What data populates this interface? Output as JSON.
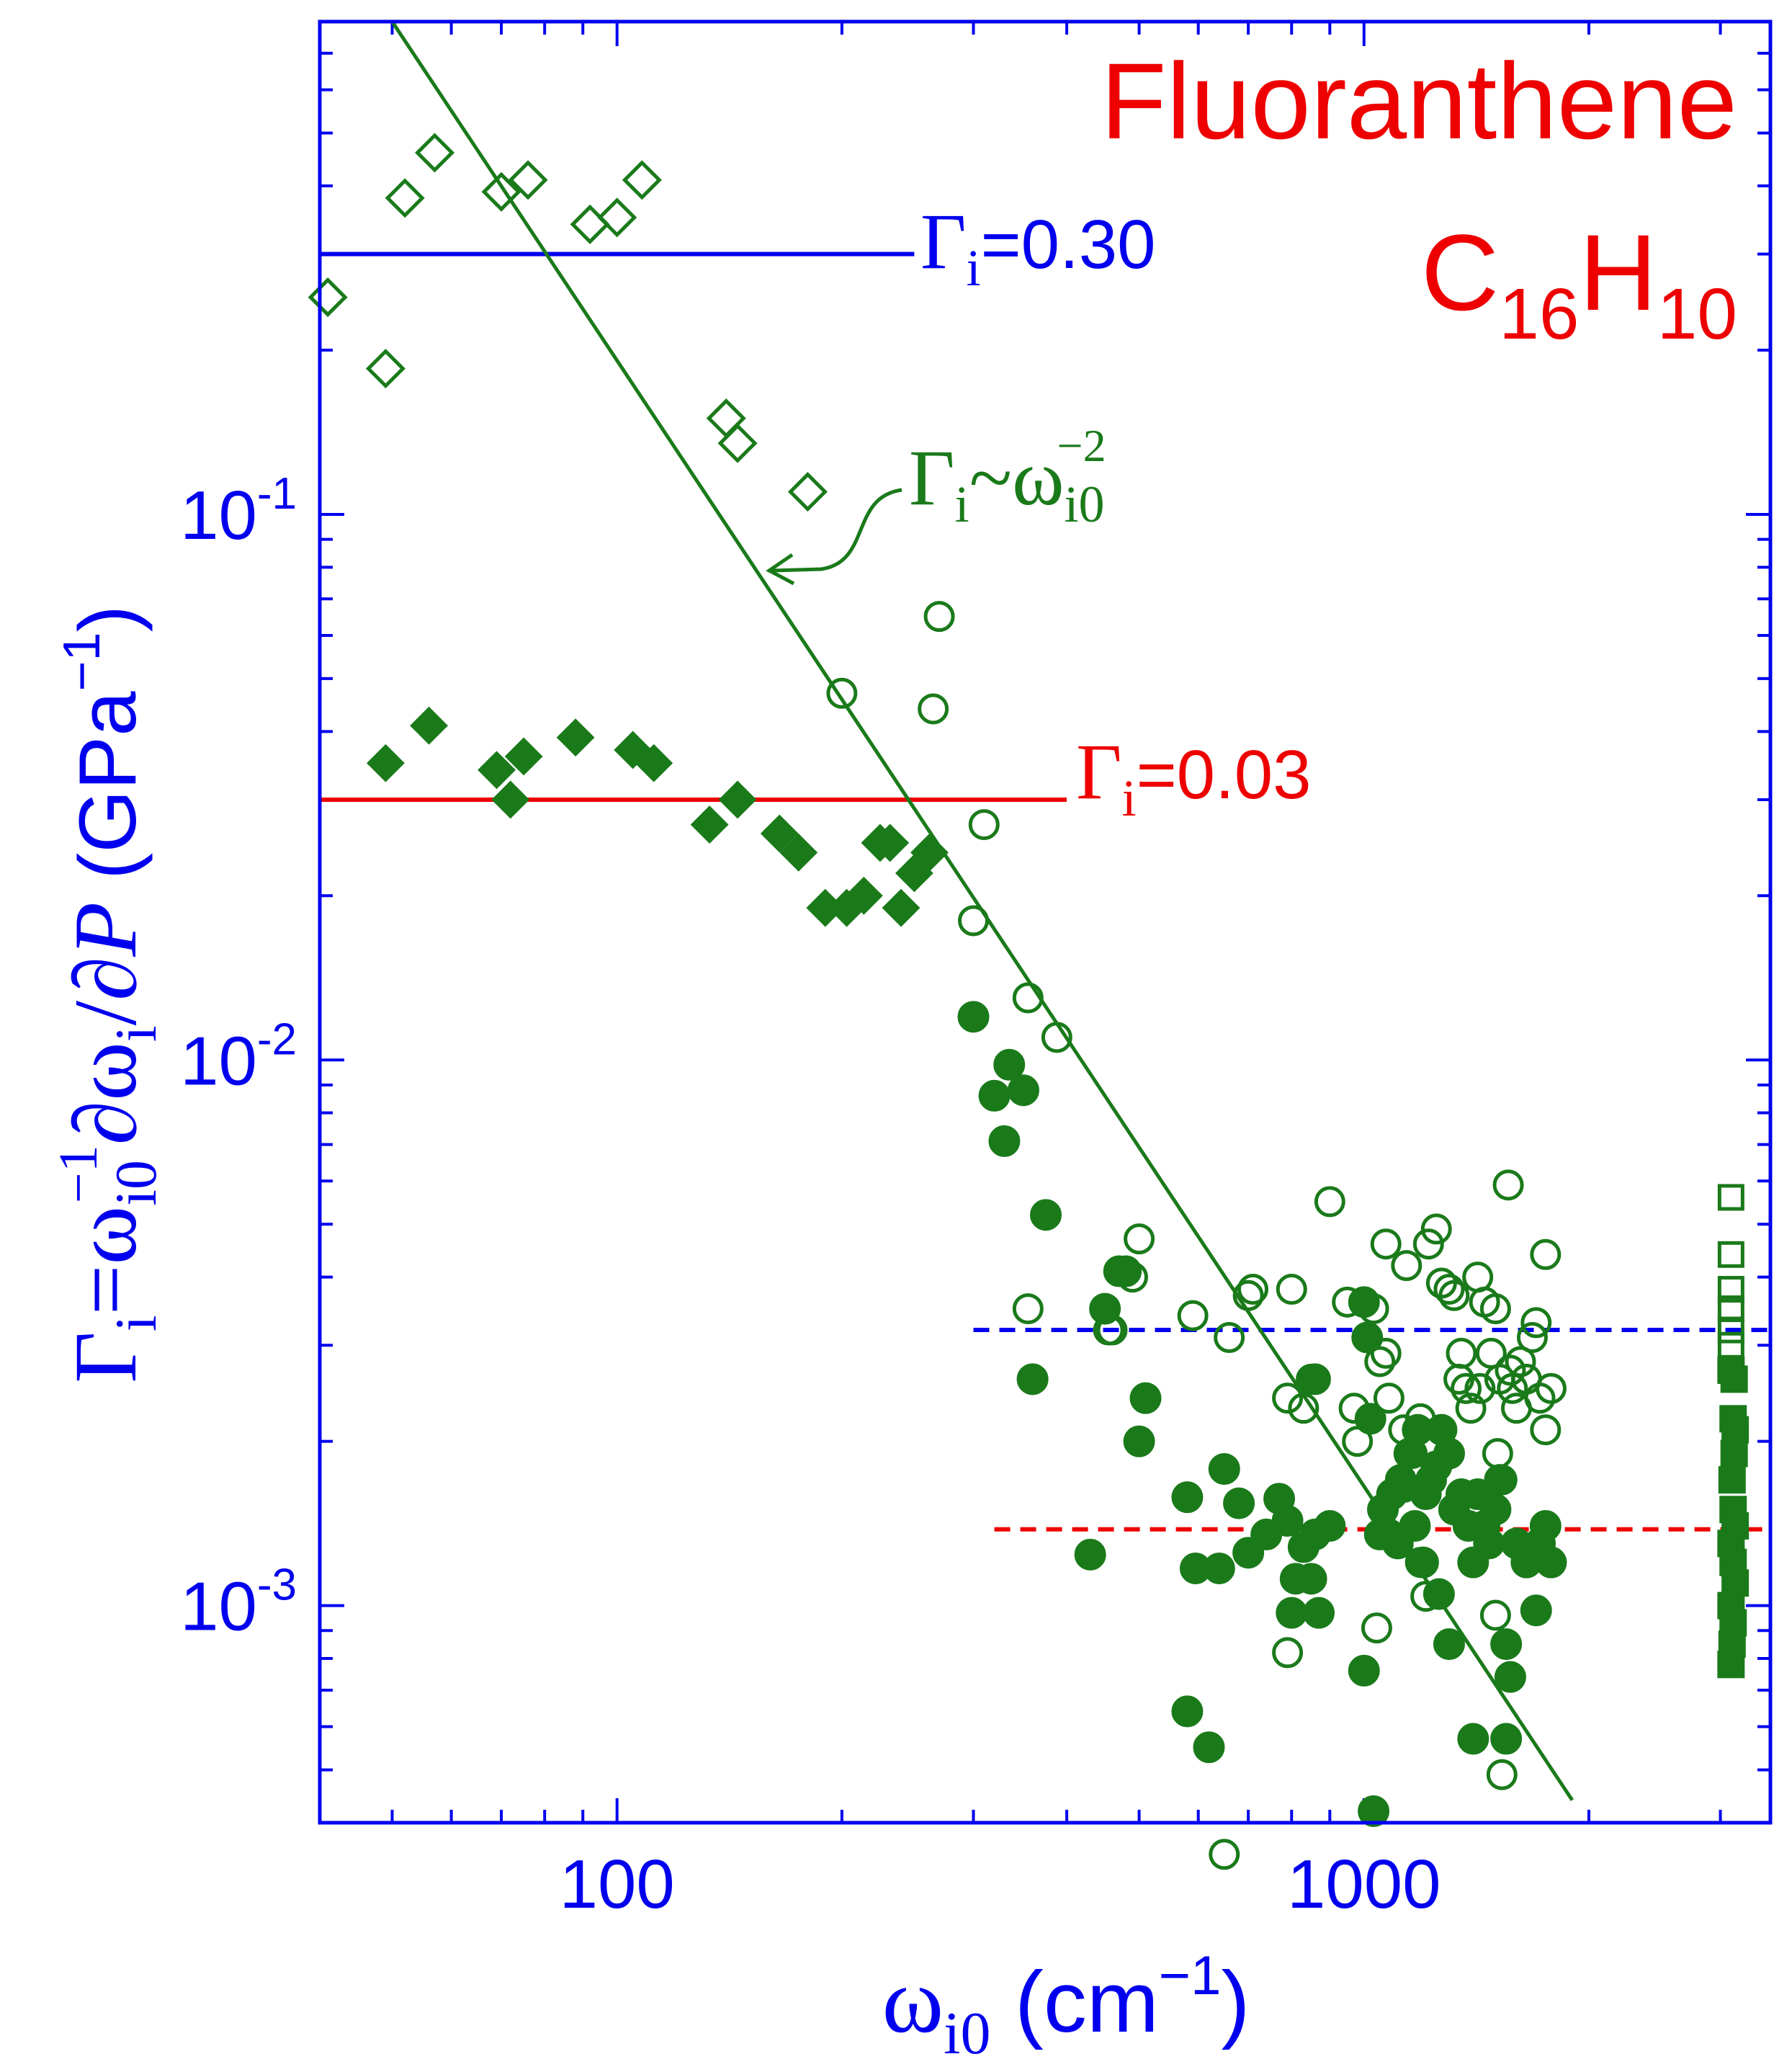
{
  "chart_data": {
    "type": "scatter",
    "title": "Fluoranthene",
    "formula": {
      "c": "C",
      "c_sub": "16",
      "h": "H",
      "h_sub": "10"
    },
    "xscale": "log",
    "yscale": "log",
    "xlim": [
      40,
      3500
    ],
    "ylim": [
      0.0004,
      0.8
    ],
    "xticks": [
      {
        "value": 100,
        "label": "100"
      },
      {
        "value": 1000,
        "label": "1000"
      }
    ],
    "yticks": [
      {
        "value": 0.1,
        "base": "10",
        "exp": "-1"
      },
      {
        "value": 0.01,
        "base": "10",
        "exp": "-2"
      },
      {
        "value": 0.001,
        "base": "10",
        "exp": "-3"
      }
    ],
    "xlabel": {
      "main": "ω",
      "sub": "i0",
      "rest": " (cm",
      "sup": "−1",
      "end": ")"
    },
    "ylabel": {
      "p1": "Γ",
      "s1": "i",
      "p2": "=ω",
      "s2": "i0",
      "sup2": "−1",
      "p3": "∂ω",
      "s3": "i",
      "p4": "/∂",
      "p5": "P",
      "p6": " (GPa",
      "sup6": "−1",
      "p7": ")"
    },
    "reference_lines": [
      {
        "label_main": "Γ",
        "label_sub": "i",
        "label_value": "=0.30",
        "y": 0.3,
        "x_range": [
          40,
          250
        ],
        "style": "solid",
        "color": "#0000ee"
      },
      {
        "label_main": "Γ",
        "label_sub": "i",
        "label_value": "=0.03",
        "y": 0.03,
        "x_range": [
          40,
          400
        ],
        "style": "solid",
        "color": "#ee0000"
      },
      {
        "y": 0.0032,
        "x_range": [
          300,
          3500
        ],
        "style": "dashed",
        "color": "#0000ee"
      },
      {
        "y": 0.00138,
        "x_range": [
          320,
          3500
        ],
        "style": "dashed",
        "color": "#ee0000"
      }
    ],
    "fit_line": {
      "label": {
        "main": "Γ",
        "sub1": "i",
        "tilde": "~ω",
        "sub2": "i0",
        "sup": "−2"
      },
      "x": [
        50,
        1900
      ],
      "y": [
        0.8,
        0.00044
      ],
      "color": "#1a7a1a"
    },
    "series": [
      {
        "name": "open-diamond",
        "marker": "diamond",
        "filled": false,
        "points": [
          [
            41,
            0.25
          ],
          [
            49,
            0.185
          ],
          [
            52,
            0.38
          ],
          [
            57,
            0.46
          ],
          [
            70,
            0.39
          ],
          [
            76,
            0.41
          ],
          [
            92,
            0.34
          ],
          [
            100,
            0.35
          ],
          [
            108,
            0.41
          ],
          [
            140,
            0.15
          ],
          [
            145,
            0.135
          ],
          [
            180,
            0.11
          ]
        ]
      },
      {
        "name": "filled-diamond",
        "marker": "diamond",
        "filled": true,
        "points": [
          [
            49,
            0.035
          ],
          [
            56,
            0.041
          ],
          [
            69,
            0.034
          ],
          [
            75,
            0.036
          ],
          [
            72,
            0.03
          ],
          [
            88,
            0.039
          ],
          [
            105,
            0.037
          ],
          [
            112,
            0.035
          ],
          [
            133,
            0.027
          ],
          [
            145,
            0.03
          ],
          [
            165,
            0.026
          ],
          [
            175,
            0.024
          ],
          [
            190,
            0.019
          ],
          [
            203,
            0.019
          ],
          [
            214,
            0.02
          ],
          [
            225,
            0.025
          ],
          [
            232,
            0.025
          ],
          [
            240,
            0.019
          ],
          [
            250,
            0.022
          ],
          [
            262,
            0.024
          ]
        ]
      },
      {
        "name": "open-circle",
        "marker": "circle",
        "filled": false,
        "points": [
          [
            270,
            0.065
          ],
          [
            200,
            0.047
          ],
          [
            265,
            0.044
          ],
          [
            310,
            0.027
          ],
          [
            300,
            0.018
          ],
          [
            355,
            0.013
          ],
          [
            388,
            0.011
          ],
          [
            355,
            0.0035
          ],
          [
            500,
            0.0047
          ],
          [
            490,
            0.004
          ],
          [
            455,
            0.0032
          ],
          [
            460,
            0.0032
          ],
          [
            590,
            0.0034
          ],
          [
            660,
            0.0031
          ],
          [
            700,
            0.0037
          ],
          [
            710,
            0.0038
          ],
          [
            800,
            0.0038
          ],
          [
            850,
            0.0026
          ],
          [
            790,
            0.0024
          ],
          [
            830,
            0.0023
          ],
          [
            900,
            0.0055
          ],
          [
            950,
            0.0036
          ],
          [
            970,
            0.0023
          ],
          [
            980,
            0.002
          ],
          [
            1030,
            0.0035
          ],
          [
            1050,
            0.0028
          ],
          [
            1070,
            0.0029
          ],
          [
            1080,
            0.0024
          ],
          [
            1070,
            0.0046
          ],
          [
            1140,
            0.0042
          ],
          [
            1130,
            0.0021
          ],
          [
            1160,
            0.0019
          ],
          [
            1190,
            0.0022
          ],
          [
            1220,
            0.0046
          ],
          [
            1250,
            0.0049
          ],
          [
            1270,
            0.0039
          ],
          [
            1300,
            0.0038
          ],
          [
            1320,
            0.0037
          ],
          [
            1350,
            0.0029
          ],
          [
            1340,
            0.0026
          ],
          [
            1370,
            0.0025
          ],
          [
            1390,
            0.0023
          ],
          [
            1420,
            0.004
          ],
          [
            1430,
            0.0025
          ],
          [
            1450,
            0.0036
          ],
          [
            1480,
            0.0029
          ],
          [
            1500,
            0.0035
          ],
          [
            1520,
            0.0026
          ],
          [
            1510,
            0.0019
          ],
          [
            1530,
            0.0017
          ],
          [
            1560,
            0.0059
          ],
          [
            1570,
            0.0027
          ],
          [
            1580,
            0.0025
          ],
          [
            1600,
            0.0023
          ],
          [
            1620,
            0.0028
          ],
          [
            1650,
            0.0026
          ],
          [
            1680,
            0.0031
          ],
          [
            1700,
            0.0033
          ],
          [
            1720,
            0.0024
          ],
          [
            1750,
            0.0021
          ],
          [
            1780,
            0.0025
          ],
          [
            1750,
            0.0044
          ],
          [
            790,
            0.00082
          ],
          [
            1040,
            0.00091
          ],
          [
            1500,
            0.00096
          ],
          [
            1530,
            0.00049
          ],
          [
            650,
            0.00035
          ],
          [
            1210,
            0.00104
          ],
          [
            1190,
            0.0012
          ]
        ]
      },
      {
        "name": "filled-circle",
        "marker": "circle",
        "filled": true,
        "points": [
          [
            300,
            0.012
          ],
          [
            320,
            0.0086
          ],
          [
            335,
            0.0098
          ],
          [
            350,
            0.0088
          ],
          [
            330,
            0.0071
          ],
          [
            375,
            0.0052
          ],
          [
            470,
            0.0041
          ],
          [
            480,
            0.0041
          ],
          [
            450,
            0.0035
          ],
          [
            360,
            0.0026
          ],
          [
            500,
            0.002
          ],
          [
            510,
            0.0024
          ],
          [
            430,
            0.00124
          ],
          [
            580,
            0.00158
          ],
          [
            595,
            0.00117
          ],
          [
            640,
            0.00117
          ],
          [
            650,
            0.00178
          ],
          [
            680,
            0.00154
          ],
          [
            700,
            0.00125
          ],
          [
            740,
            0.00135
          ],
          [
            770,
            0.00157
          ],
          [
            790,
            0.00143
          ],
          [
            800,
            0.00097
          ],
          [
            810,
            0.00112
          ],
          [
            830,
            0.00128
          ],
          [
            850,
            0.00112
          ],
          [
            860,
            0.00135
          ],
          [
            870,
            0.00097
          ],
          [
            900,
            0.0014
          ],
          [
            580,
            0.00064
          ],
          [
            620,
            0.00055
          ],
          [
            860,
            0.0026
          ],
          [
            1000,
            0.0036
          ],
          [
            1010,
            0.0031
          ],
          [
            1020,
            0.0022
          ],
          [
            1050,
            0.00135
          ],
          [
            1060,
            0.0015
          ],
          [
            1080,
            0.00135
          ],
          [
            1090,
            0.0016
          ],
          [
            1110,
            0.0013
          ],
          [
            1120,
            0.0017
          ],
          [
            1130,
            0.00165
          ],
          [
            1150,
            0.0019
          ],
          [
            1170,
            0.0014
          ],
          [
            1180,
            0.0021
          ],
          [
            1200,
            0.0012
          ],
          [
            1210,
            0.0016
          ],
          [
            1230,
            0.0017
          ],
          [
            1250,
            0.0018
          ],
          [
            1270,
            0.0021
          ],
          [
            1300,
            0.0019
          ],
          [
            1320,
            0.0015
          ],
          [
            1350,
            0.0016
          ],
          [
            1380,
            0.0014
          ],
          [
            1400,
            0.0012
          ],
          [
            1420,
            0.0016
          ],
          [
            1450,
            0.0014
          ],
          [
            1470,
            0.0013
          ],
          [
            1500,
            0.0015
          ],
          [
            1520,
            0.0017
          ],
          [
            1550,
            0.00085
          ],
          [
            1570,
            0.00074
          ],
          [
            1600,
            0.0013
          ],
          [
            1650,
            0.0012
          ],
          [
            1700,
            0.00098
          ],
          [
            1720,
            0.0013
          ],
          [
            1750,
            0.0014
          ],
          [
            1780,
            0.0012
          ],
          [
            1300,
            0.00085
          ],
          [
            1400,
            0.00057
          ],
          [
            1550,
            0.00057
          ],
          [
            1000,
            0.00076
          ],
          [
            1030,
            0.00042
          ],
          [
            1260,
            0.00105
          ]
        ]
      },
      {
        "name": "open-square",
        "marker": "square",
        "filled": false,
        "points": [
          [
            3100,
            0.0056
          ],
          [
            3100,
            0.0044
          ],
          [
            3100,
            0.0038
          ],
          [
            3100,
            0.0035
          ],
          [
            3100,
            0.0032
          ],
          [
            3100,
            0.003
          ]
        ]
      },
      {
        "name": "filled-square",
        "marker": "square",
        "filled": true,
        "points": [
          [
            3100,
            0.0027
          ],
          [
            3130,
            0.0026
          ],
          [
            3120,
            0.0022
          ],
          [
            3140,
            0.0021
          ],
          [
            3130,
            0.0019
          ],
          [
            3110,
            0.0017
          ],
          [
            3120,
            0.0015
          ],
          [
            3140,
            0.0014
          ],
          [
            3100,
            0.0013
          ],
          [
            3120,
            0.0012
          ],
          [
            3140,
            0.0011
          ],
          [
            3100,
            0.001
          ],
          [
            3120,
            0.00093
          ],
          [
            3110,
            0.00085
          ],
          [
            3100,
            0.00078
          ]
        ]
      }
    ]
  },
  "colors": {
    "axis": "#0000ee",
    "title": "#ee0000",
    "data": "#1a7a1a"
  }
}
